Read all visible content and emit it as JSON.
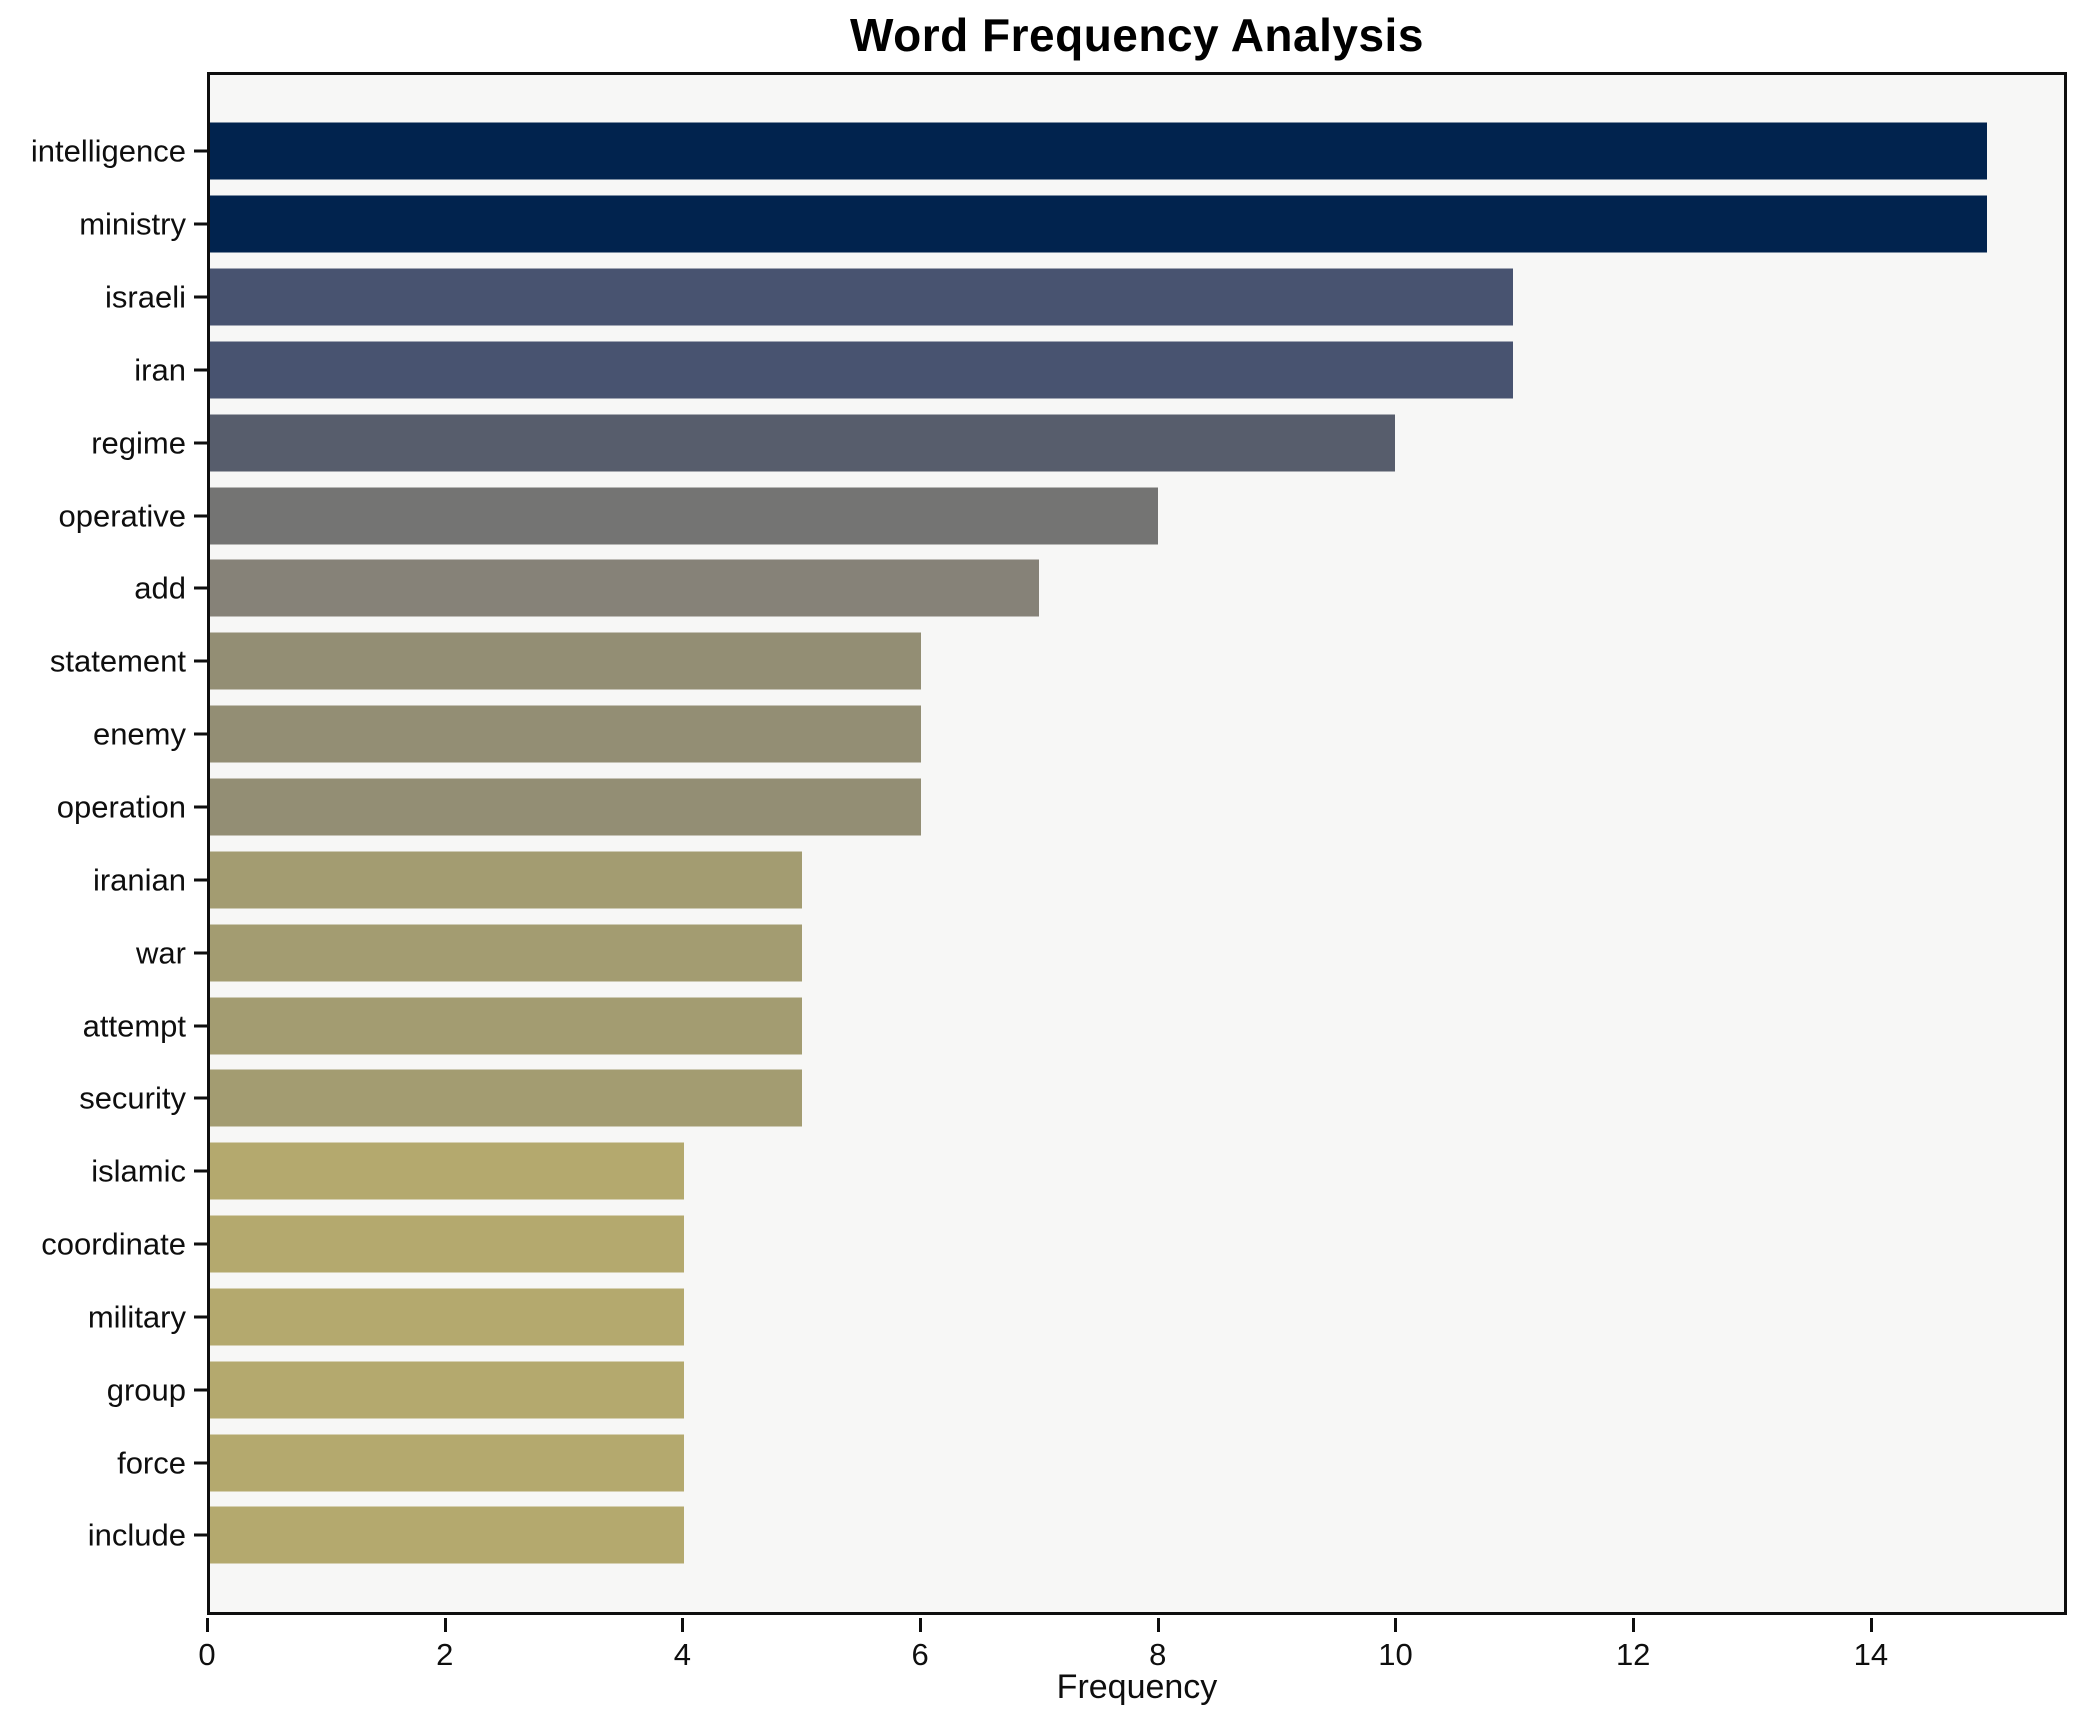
{
  "title": "Word Frequency Analysis",
  "xlabel": "Frequency",
  "chart_data": {
    "type": "bar",
    "orientation": "horizontal",
    "title": "Word Frequency Analysis",
    "xlabel": "Frequency",
    "ylabel": "",
    "xlim": [
      0,
      15.65
    ],
    "x_ticks": [
      0,
      2,
      4,
      6,
      8,
      10,
      12,
      14
    ],
    "grid": false,
    "legend": false,
    "plot_background": "#f7f7f6",
    "figure_background": "#ffffff",
    "spine_color": "#0e0e0e",
    "categories": [
      "intelligence",
      "ministry",
      "israeli",
      "iran",
      "regime",
      "operative",
      "add",
      "statement",
      "enemy",
      "operation",
      "iranian",
      "war",
      "attempt",
      "security",
      "islamic",
      "coordinate",
      "military",
      "group",
      "force",
      "include"
    ],
    "values": [
      15,
      15,
      11,
      11,
      10,
      8,
      7,
      6,
      6,
      6,
      5,
      5,
      5,
      5,
      4,
      4,
      4,
      4,
      4,
      4
    ],
    "bar_colors": [
      "#01234e",
      "#01234e",
      "#485370",
      "#485370",
      "#575d6c",
      "#747473",
      "#868278",
      "#938e74",
      "#938e74",
      "#938e74",
      "#a39c71",
      "#a39c71",
      "#a39c71",
      "#a39c71",
      "#b4a96e",
      "#b4a96e",
      "#b4a96e",
      "#b4a96e",
      "#b4a96e",
      "#b4a96e"
    ]
  }
}
